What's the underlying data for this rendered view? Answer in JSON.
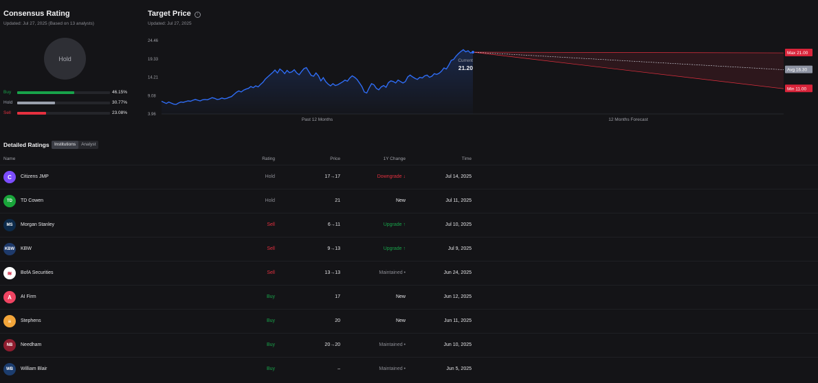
{
  "consensus": {
    "title": "Consensus Rating",
    "updated": "Updated: Jul 27, 2025 (Based on 13 analysts)",
    "rating": "Hold",
    "bars": [
      {
        "label": "Buy",
        "pct": "46.15%",
        "value": 46.15,
        "color": "#18a34a"
      },
      {
        "label": "Hold",
        "pct": "30.77%",
        "value": 30.77,
        "color": "#9aa0ad"
      },
      {
        "label": "Sell",
        "pct": "23.08%",
        "value": 23.08,
        "color": "#e5303f"
      }
    ]
  },
  "target": {
    "title": "Target Price",
    "info_icon": "info-icon",
    "updated": "Updated: Jul 27, 2025"
  },
  "chart_data": {
    "type": "line",
    "title": "Target Price",
    "yticks": [
      "24.46",
      "19.33",
      "14.21",
      "9.08",
      "3.96"
    ],
    "ylim": [
      3.96,
      24.46
    ],
    "xlabels": [
      "Past 12 Months",
      "12 Months Forecast"
    ],
    "series": [
      {
        "values": [
          7.5,
          7.2,
          6.9,
          7.3,
          7.0,
          6.7,
          6.6,
          7.0,
          7.3,
          7.2,
          7.4,
          7.6,
          7.5,
          7.8,
          8.0,
          7.8,
          7.6,
          7.9,
          8.0,
          7.9,
          8.2,
          8.5,
          8.3,
          8.0,
          8.1,
          8.4,
          8.2,
          8.3,
          8.6,
          8.8,
          9.4,
          10.0,
          10.4,
          10.1,
          10.6,
          10.9,
          11.1,
          11.6,
          11.3,
          11.8,
          11.5,
          12.2,
          12.8,
          13.7,
          14.3,
          14.9,
          15.5,
          16.2,
          15.4,
          16.5,
          16.0,
          15.2,
          16.1,
          15.5,
          15.7,
          16.3,
          15.4,
          14.9,
          15.8,
          16.6,
          16.9,
          15.8,
          14.7,
          14.5,
          15.4,
          14.6,
          13.2,
          14.1,
          13.0,
          12.3,
          11.8,
          12.4,
          11.9,
          12.1,
          12.5,
          12.9,
          13.4,
          13.1,
          14.0,
          14.6,
          14.2,
          13.6,
          12.6,
          11.6,
          10.1,
          9.8,
          11.2,
          12.4,
          12.1,
          11.1,
          10.7,
          11.5,
          11.9,
          11.4,
          12.7,
          13.2,
          13.0,
          12.6,
          13.4,
          13.0,
          12.6,
          13.0,
          14.3,
          14.8,
          14.3,
          13.9,
          13.6,
          14.2,
          14.0,
          14.6,
          14.8,
          14.2,
          14.5,
          15.2,
          15.0,
          15.3,
          15.9,
          16.8,
          16.5,
          17.6,
          18.9,
          19.2,
          20.1,
          20.8,
          21.4,
          21.9,
          21.3,
          21.6,
          21.0,
          21.2
        ]
      }
    ],
    "current_label": "Current",
    "current": 21.2,
    "current_text": "21.20",
    "forecast": {
      "max": 21.0,
      "avg": 16.3,
      "min": 11.0,
      "max_label": "Max 21.00",
      "avg_label": "Avg 16.30",
      "min_label": "Min 11.00"
    }
  },
  "detailed": {
    "title": "Detailed Ratings",
    "tabs": [
      "Institutions",
      "Analyst"
    ],
    "columns": [
      "Name",
      "Rating",
      "Price",
      "1Y Change",
      "Time"
    ],
    "rows": [
      {
        "name": "Citizens JMP",
        "logo": "C",
        "logo_color": "#7c4dff",
        "rating": "Hold",
        "price": "17→17",
        "change": "Downgrade ↓",
        "change_type": "down",
        "time": "Jul 14, 2025"
      },
      {
        "name": "TD Cowen",
        "logo": "TD",
        "logo_color": "#19a53a",
        "rating": "Hold",
        "price": "21",
        "change": "New",
        "change_type": "new",
        "time": "Jul 11, 2025"
      },
      {
        "name": "Morgan Stanley",
        "logo": "MS",
        "logo_color": "#0c2a4a",
        "rating": "Sell",
        "price": "6→11",
        "change": "Upgrade ↑",
        "change_type": "up",
        "time": "Jul 10, 2025"
      },
      {
        "name": "KBW",
        "logo": "KBW",
        "logo_color": "#1e3a6b",
        "rating": "Sell",
        "price": "9→13",
        "change": "Upgrade ↑",
        "change_type": "up",
        "time": "Jul 9, 2025"
      },
      {
        "name": "BofA Securities",
        "logo": "≋",
        "logo_color": "#ffffff",
        "rating": "Sell",
        "price": "13→13",
        "change": "Maintained •",
        "change_type": "same",
        "time": "Jun 24, 2025"
      },
      {
        "name": "AI Firm",
        "logo": "A",
        "logo_color": "#ef4462",
        "rating": "Buy",
        "price": "17",
        "change": "New",
        "change_type": "new",
        "time": "Jun 12, 2025"
      },
      {
        "name": "Stephens",
        "logo": "≡",
        "logo_color": "#f2a53a",
        "rating": "Buy",
        "price": "20",
        "change": "New",
        "change_type": "new",
        "time": "Jun 11, 2025"
      },
      {
        "name": "Needham",
        "logo": "NB",
        "logo_color": "#8f1d2f",
        "rating": "Buy",
        "price": "20→20",
        "change": "Maintained •",
        "change_type": "same",
        "time": "Jun 10, 2025"
      },
      {
        "name": "William Blair",
        "logo": "WB",
        "logo_color": "#1c3d6e",
        "rating": "Buy",
        "price": "–",
        "change": "Maintained •",
        "change_type": "same",
        "time": "Jun 5, 2025"
      }
    ]
  },
  "colors": {
    "buy": "#18a34a",
    "hold": "#8c8d94",
    "sell": "#e5303f",
    "line": "#2f6df6",
    "forecast": "#e5303f",
    "avg": "#9aa0ad"
  }
}
